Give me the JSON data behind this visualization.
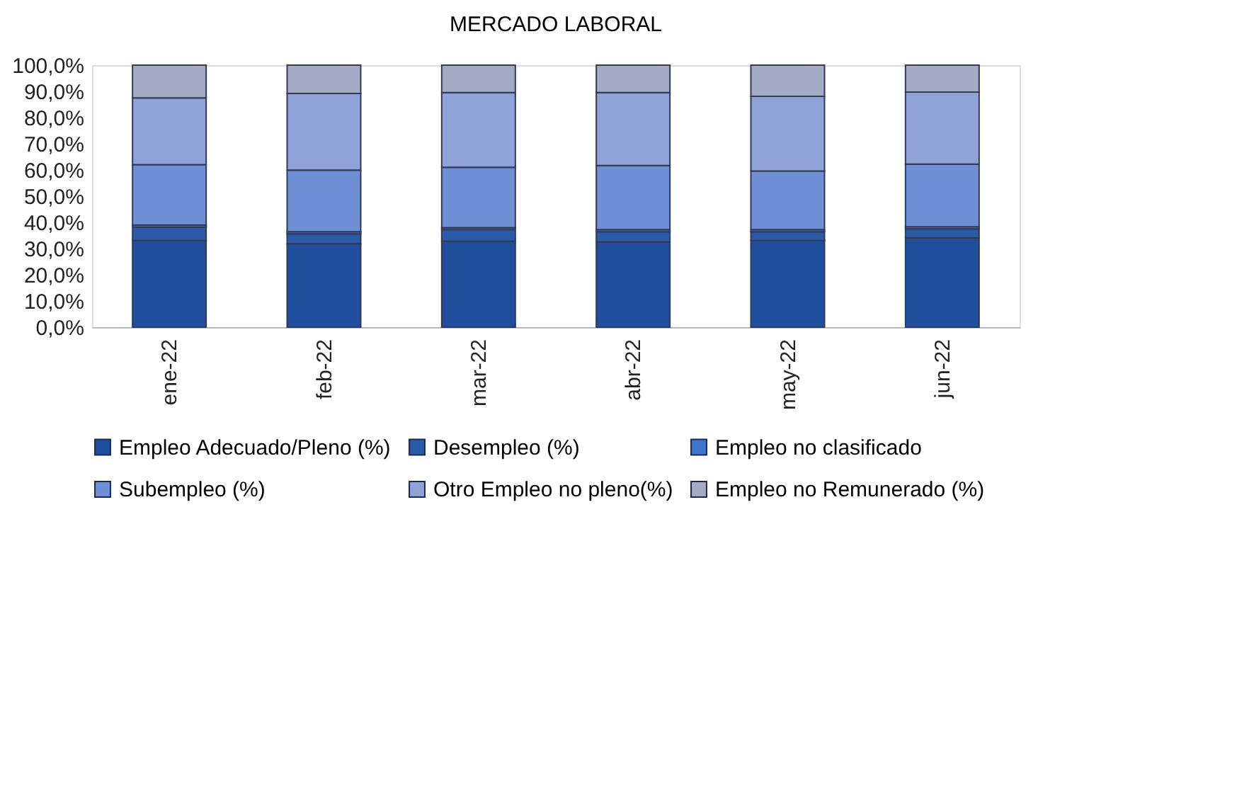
{
  "chart_data": {
    "type": "bar",
    "title": "MERCADO LABORAL",
    "stacked": true,
    "categories": [
      "ene-22",
      "feb-22",
      "mar-22",
      "abr-22",
      "may-22",
      "jun-22"
    ],
    "series": [
      {
        "name": "Empleo Adecuado/Pleno (%)",
        "color": "#1f4e9c",
        "values": [
          33.1,
          31.8,
          32.8,
          32.6,
          33.1,
          34.1
        ]
      },
      {
        "name": "Desempleo (%)",
        "color": "#2a5aa8",
        "values": [
          5.1,
          3.8,
          4.4,
          3.8,
          3.3,
          3.4
        ]
      },
      {
        "name": "Empleo no clasificado",
        "color": "#3f74d0",
        "values": [
          0.8,
          0.8,
          0.8,
          0.8,
          0.8,
          0.8
        ]
      },
      {
        "name": "Subempleo (%)",
        "color": "#6f8fd6",
        "values": [
          23.0,
          23.5,
          23.0,
          24.5,
          22.4,
          23.9
        ]
      },
      {
        "name": "Otro Empleo no pleno(%)",
        "color": "#8fa3d8",
        "values": [
          25.5,
          29.3,
          28.5,
          27.8,
          28.5,
          27.5
        ]
      },
      {
        "name": "Empleo no Remunerado (%)",
        "color": "#a5abc4",
        "values": [
          12.5,
          10.8,
          10.5,
          10.5,
          11.9,
          10.3
        ]
      }
    ],
    "ylim": [
      0,
      100
    ],
    "yticks": [
      {
        "value": 0,
        "label": "0,0%"
      },
      {
        "value": 10,
        "label": "10,0%"
      },
      {
        "value": 20,
        "label": "20,0%"
      },
      {
        "value": 30,
        "label": "30,0%"
      },
      {
        "value": 40,
        "label": "40,0%"
      },
      {
        "value": 50,
        "label": "50,0%"
      },
      {
        "value": 60,
        "label": "60,0%"
      },
      {
        "value": 70,
        "label": "70,0%"
      },
      {
        "value": 80,
        "label": "80,0%"
      },
      {
        "value": 90,
        "label": "90,0%"
      },
      {
        "value": 100,
        "label": "100,0%"
      }
    ],
    "grid": false,
    "legend": "bottom"
  }
}
